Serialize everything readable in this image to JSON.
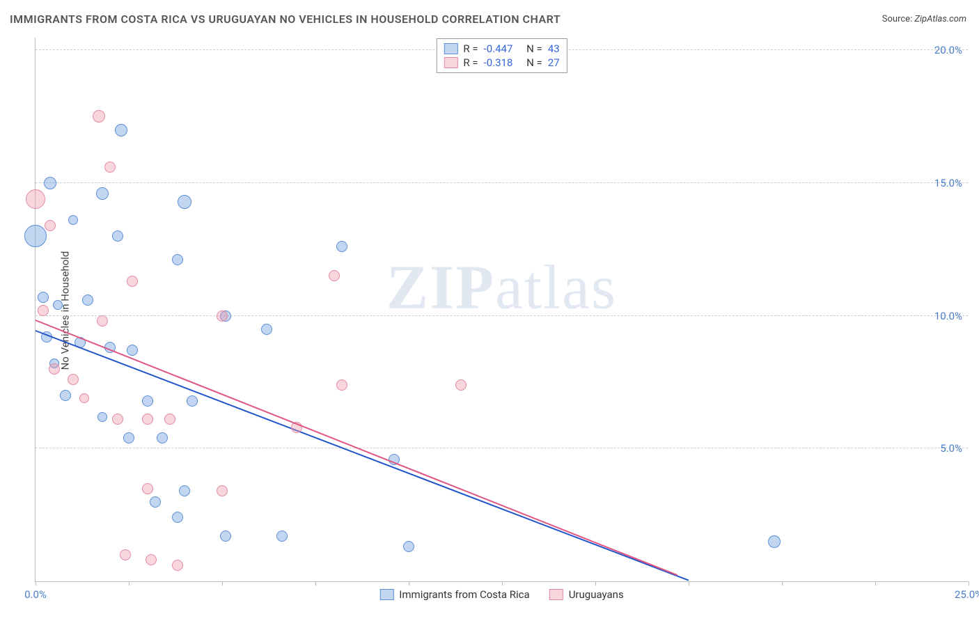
{
  "title": "IMMIGRANTS FROM COSTA RICA VS URUGUAYAN NO VEHICLES IN HOUSEHOLD CORRELATION CHART",
  "source_label": "Source:",
  "source_value": "ZipAtlas.com",
  "ylabel": "No Vehicles in Household",
  "watermark_bold": "ZIP",
  "watermark_rest": "atlas",
  "chart": {
    "type": "scatter",
    "xlim": [
      0,
      25
    ],
    "ylim": [
      0,
      20.5
    ],
    "xticks": [
      0,
      2.5,
      5,
      7.5,
      10,
      12.5,
      15,
      17.5,
      20,
      22.5,
      25
    ],
    "xtick_labels": {
      "0": "0.0%",
      "25": "25.0%"
    },
    "yticks": [
      5,
      10,
      15,
      20
    ],
    "ytick_labels": {
      "5": "5.0%",
      "10": "10.0%",
      "15": "15.0%",
      "20": "20.0%"
    },
    "grid_color": "#cccccc",
    "background_color": "#ffffff",
    "series": [
      {
        "name": "Immigrants from Costa Rica",
        "fill": "rgba(120,165,225,0.45)",
        "stroke": "#5a8fd6",
        "trend_color": "#2255cc",
        "r_label": "R =",
        "r_value": "-0.447",
        "n_label": "N =",
        "n_value": "43",
        "trend": {
          "x1": 0,
          "y1": 9.4,
          "x2": 17.5,
          "y2": 0
        },
        "points": [
          {
            "x": 0.0,
            "y": 13.0,
            "r": 16
          },
          {
            "x": 0.4,
            "y": 15.0,
            "r": 9
          },
          {
            "x": 2.3,
            "y": 17.0,
            "r": 9
          },
          {
            "x": 0.6,
            "y": 10.4,
            "r": 7
          },
          {
            "x": 1.8,
            "y": 14.6,
            "r": 9
          },
          {
            "x": 4.0,
            "y": 14.3,
            "r": 10
          },
          {
            "x": 2.2,
            "y": 13.0,
            "r": 8
          },
          {
            "x": 3.8,
            "y": 12.1,
            "r": 8
          },
          {
            "x": 8.2,
            "y": 12.6,
            "r": 8
          },
          {
            "x": 0.2,
            "y": 10.7,
            "r": 8
          },
          {
            "x": 1.4,
            "y": 10.6,
            "r": 8
          },
          {
            "x": 5.1,
            "y": 10.0,
            "r": 8
          },
          {
            "x": 0.3,
            "y": 9.2,
            "r": 8
          },
          {
            "x": 1.2,
            "y": 9.0,
            "r": 8
          },
          {
            "x": 2.0,
            "y": 8.8,
            "r": 8
          },
          {
            "x": 2.6,
            "y": 8.7,
            "r": 8
          },
          {
            "x": 6.2,
            "y": 9.5,
            "r": 8
          },
          {
            "x": 0.8,
            "y": 7.0,
            "r": 8
          },
          {
            "x": 3.0,
            "y": 6.8,
            "r": 8
          },
          {
            "x": 4.2,
            "y": 6.8,
            "r": 8
          },
          {
            "x": 2.5,
            "y": 5.4,
            "r": 8
          },
          {
            "x": 3.4,
            "y": 5.4,
            "r": 8
          },
          {
            "x": 3.2,
            "y": 3.0,
            "r": 8
          },
          {
            "x": 4.0,
            "y": 3.4,
            "r": 8
          },
          {
            "x": 3.8,
            "y": 2.4,
            "r": 8
          },
          {
            "x": 5.1,
            "y": 1.7,
            "r": 8
          },
          {
            "x": 6.6,
            "y": 1.7,
            "r": 8
          },
          {
            "x": 9.6,
            "y": 4.6,
            "r": 8
          },
          {
            "x": 10.0,
            "y": 1.3,
            "r": 8
          },
          {
            "x": 19.8,
            "y": 1.5,
            "r": 9
          },
          {
            "x": 1.8,
            "y": 6.2,
            "r": 7
          },
          {
            "x": 0.5,
            "y": 8.2,
            "r": 7
          },
          {
            "x": 1.0,
            "y": 13.6,
            "r": 7
          }
        ]
      },
      {
        "name": "Uruguayans",
        "fill": "rgba(240,150,170,0.40)",
        "stroke": "#e28aa2",
        "trend_color": "#e05580",
        "r_label": "R =",
        "r_value": "-0.318",
        "n_label": "N =",
        "n_value": "27",
        "trend": {
          "x1": 0,
          "y1": 9.8,
          "x2": 17.2,
          "y2": 0.2
        },
        "points": [
          {
            "x": 0.0,
            "y": 14.4,
            "r": 14
          },
          {
            "x": 1.7,
            "y": 17.5,
            "r": 9
          },
          {
            "x": 2.0,
            "y": 15.6,
            "r": 8
          },
          {
            "x": 0.4,
            "y": 13.4,
            "r": 8
          },
          {
            "x": 2.6,
            "y": 11.3,
            "r": 8
          },
          {
            "x": 8.0,
            "y": 11.5,
            "r": 8
          },
          {
            "x": 0.2,
            "y": 10.2,
            "r": 8
          },
          {
            "x": 1.8,
            "y": 9.8,
            "r": 8
          },
          {
            "x": 5.0,
            "y": 10.0,
            "r": 8
          },
          {
            "x": 0.5,
            "y": 8.0,
            "r": 8
          },
          {
            "x": 1.0,
            "y": 7.6,
            "r": 8
          },
          {
            "x": 8.2,
            "y": 7.4,
            "r": 8
          },
          {
            "x": 11.4,
            "y": 7.4,
            "r": 8
          },
          {
            "x": 2.2,
            "y": 6.1,
            "r": 8
          },
          {
            "x": 3.0,
            "y": 6.1,
            "r": 8
          },
          {
            "x": 3.6,
            "y": 6.1,
            "r": 8
          },
          {
            "x": 7.0,
            "y": 5.8,
            "r": 8
          },
          {
            "x": 3.0,
            "y": 3.5,
            "r": 8
          },
          {
            "x": 5.0,
            "y": 3.4,
            "r": 8
          },
          {
            "x": 2.4,
            "y": 1.0,
            "r": 8
          },
          {
            "x": 3.1,
            "y": 0.8,
            "r": 8
          },
          {
            "x": 3.8,
            "y": 0.6,
            "r": 8
          },
          {
            "x": 1.3,
            "y": 6.9,
            "r": 7
          }
        ]
      }
    ]
  }
}
